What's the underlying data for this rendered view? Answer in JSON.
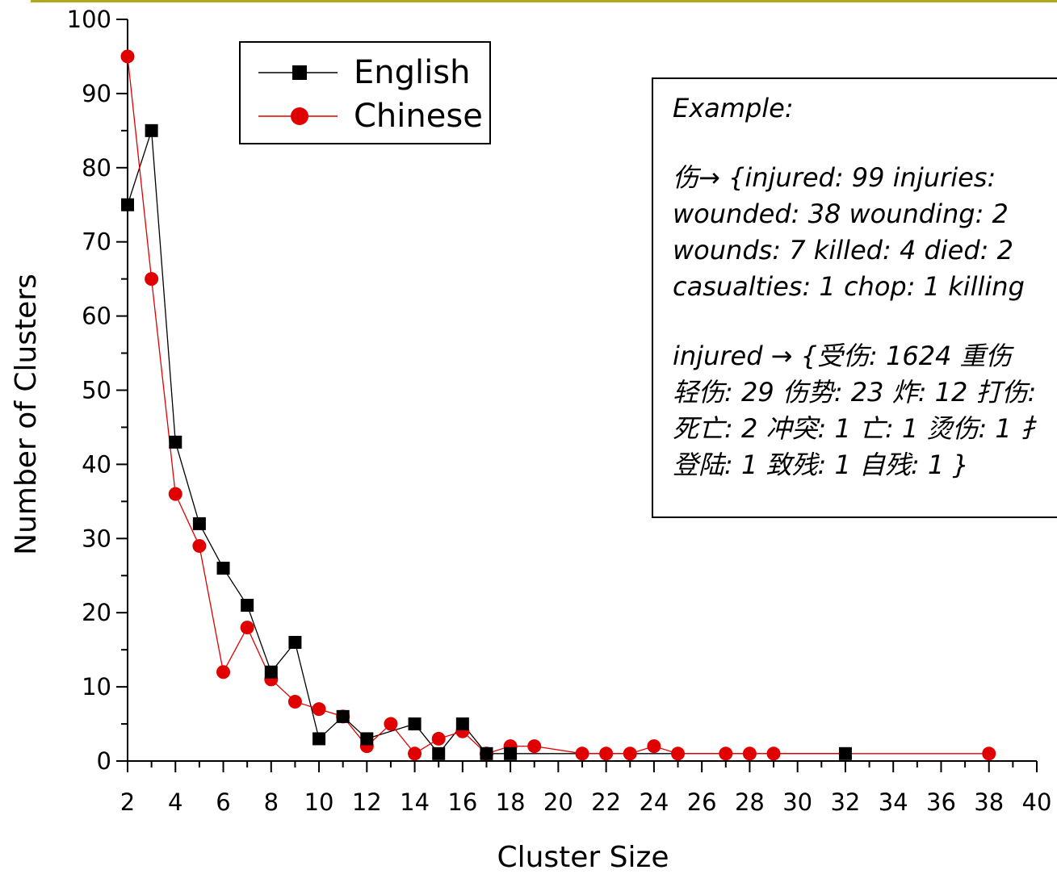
{
  "chart_data": {
    "type": "line",
    "xlabel": "Cluster Size",
    "ylabel": "Number of Clusters",
    "xlim": [
      2,
      40
    ],
    "ylim": [
      0,
      100
    ],
    "xticks": [
      2,
      4,
      6,
      8,
      10,
      12,
      14,
      16,
      18,
      20,
      22,
      24,
      26,
      28,
      30,
      32,
      34,
      36,
      38,
      40
    ],
    "yticks": [
      0,
      10,
      20,
      30,
      40,
      50,
      60,
      70,
      80,
      90,
      100
    ],
    "legend_position": "top-left",
    "series": [
      {
        "name": "English",
        "color": "#000000",
        "marker": "square",
        "points": [
          [
            2,
            75
          ],
          [
            3,
            85
          ],
          [
            4,
            43
          ],
          [
            5,
            32
          ],
          [
            6,
            26
          ],
          [
            7,
            21
          ],
          [
            8,
            12
          ],
          [
            9,
            16
          ],
          [
            10,
            3
          ],
          [
            11,
            6
          ],
          [
            12,
            3
          ],
          [
            14,
            5
          ],
          [
            15,
            1
          ],
          [
            16,
            5
          ],
          [
            17,
            1
          ],
          [
            18,
            1
          ],
          [
            32,
            1
          ]
        ]
      },
      {
        "name": "Chinese",
        "color": "#e00000",
        "marker": "circle",
        "points": [
          [
            2,
            95
          ],
          [
            3,
            65
          ],
          [
            4,
            36
          ],
          [
            5,
            29
          ],
          [
            6,
            12
          ],
          [
            7,
            18
          ],
          [
            8,
            11
          ],
          [
            9,
            8
          ],
          [
            10,
            7
          ],
          [
            11,
            6
          ],
          [
            12,
            2
          ],
          [
            13,
            5
          ],
          [
            14,
            1
          ],
          [
            15,
            3
          ],
          [
            16,
            4
          ],
          [
            17,
            1
          ],
          [
            18,
            2
          ],
          [
            19,
            2
          ],
          [
            21,
            1
          ],
          [
            22,
            1
          ],
          [
            23,
            1
          ],
          [
            24,
            2
          ],
          [
            25,
            1
          ],
          [
            27,
            1
          ],
          [
            28,
            1
          ],
          [
            29,
            1
          ],
          [
            38,
            1
          ]
        ]
      }
    ]
  },
  "example": {
    "lines": [
      "Example:",
      "",
      "伤→ {injured: 99 injuries:",
      " wounded: 38 wounding: 2",
      "wounds: 7 killed: 4 died: 2",
      "casualties: 1 chop: 1 killing",
      "",
      "injured → {受伤: 1624 重伤",
      "轻伤: 29 伤势: 23 炸: 12 打伤:",
      "死亡: 2 冲突: 1 亡: 1 烫伤: 1 扌",
      "登陆: 1 致残: 1 自残: 1 }"
    ]
  }
}
